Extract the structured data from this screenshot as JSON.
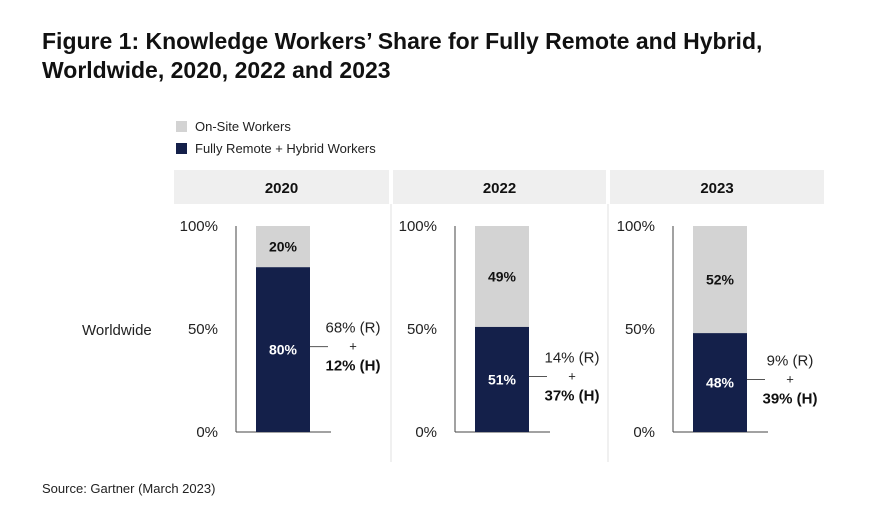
{
  "title": {
    "line1": "Figure 1: Knowledge Workers’ Share for Fully Remote and Hybrid,",
    "line2": "Worldwide, 2020, 2022 and 2023"
  },
  "legend": {
    "items": [
      {
        "label": "On-Site Workers",
        "color": "#d3d3d3"
      },
      {
        "label": "Fully Remote + Hybrid Workers",
        "color": "#14204a"
      }
    ]
  },
  "source": "Source: Gartner (March 2023)",
  "chart_data": {
    "type": "bar",
    "stacked": true,
    "title": "Knowledge Workers’ Share for Fully Remote and Hybrid, Worldwide",
    "row_label": "Worldwide",
    "categories": [
      "2020",
      "2022",
      "2023"
    ],
    "yticks": [
      "100%",
      "50%",
      "0%"
    ],
    "ylim": [
      0,
      100
    ],
    "series": [
      {
        "name": "Fully Remote + Hybrid Workers",
        "color": "#14204a",
        "values": [
          80,
          51,
          48
        ]
      },
      {
        "name": "On-Site Workers",
        "color": "#d3d3d3",
        "values": [
          20,
          49,
          52
        ]
      }
    ],
    "bar_labels": {
      "remote": [
        "80%",
        "51%",
        "48%"
      ],
      "onsite": [
        "20%",
        "49%",
        "52%"
      ]
    },
    "breakdown": [
      {
        "remote": "68% (R)",
        "plus": "+",
        "hybrid": "12% (H)"
      },
      {
        "remote": "14% (R)",
        "plus": "+",
        "hybrid": "37% (H)"
      },
      {
        "remote": "9% (R)",
        "plus": "+",
        "hybrid": "39% (H)"
      }
    ]
  }
}
